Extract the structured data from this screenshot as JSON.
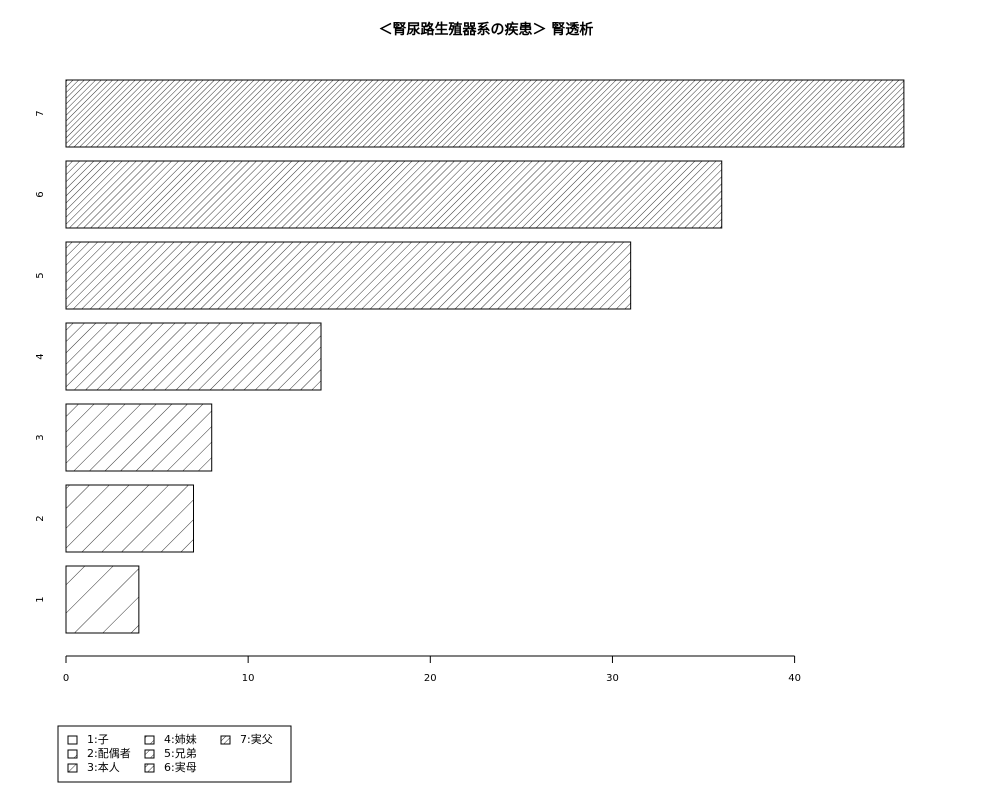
{
  "chart_data": {
    "type": "bar",
    "orientation": "horizontal",
    "title": "＜腎尿路生殖器系の疾患＞ 腎透析",
    "xlabel": "",
    "ylabel": "",
    "categories": [
      "1",
      "2",
      "3",
      "4",
      "5",
      "6",
      "7"
    ],
    "values": [
      4,
      7,
      8,
      14,
      31,
      36,
      46
    ],
    "xlim": [
      0,
      46.5
    ],
    "xticks": [
      0,
      10,
      20,
      30,
      40
    ],
    "grid": false,
    "fill": "diagonal-hatch",
    "legend": {
      "placement": "bottom-left",
      "entries": [
        "1:子",
        "2:配偶者",
        "3:本人",
        "4:姉妹",
        "5:兄弟",
        "6:実母",
        "7:実父"
      ]
    }
  }
}
